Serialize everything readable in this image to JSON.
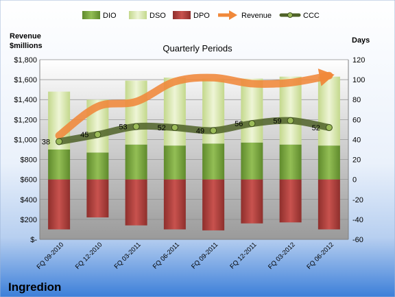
{
  "company": "Ingredion",
  "chart_data": {
    "type": "bar",
    "title": "Quarterly Periods",
    "left_axis_label": [
      "Revenue",
      "$millions"
    ],
    "right_axis_label": "Days",
    "left_ticks": [
      "$-",
      "$200",
      "$400",
      "$600",
      "$800",
      "$1,000",
      "$1,200",
      "$1,400",
      "$1,600",
      "$1,800"
    ],
    "left_ylim": [
      0,
      1800
    ],
    "right_ticks": [
      "-60",
      "-40",
      "-20",
      "0",
      "20",
      "40",
      "60",
      "80",
      "100",
      "120"
    ],
    "right_ylim": [
      -60,
      120
    ],
    "categories": [
      "FQ 09-2010",
      "FQ 12-2010",
      "FQ 03-2011",
      "FQ 06-2011",
      "FQ 09-2011",
      "FQ 12-2011",
      "FQ 03-2012",
      "FQ 06-2012"
    ],
    "legend": [
      "DIO",
      "DSO",
      "DPO",
      "Revenue",
      "CCC"
    ],
    "legend_position": "top",
    "series": [
      {
        "name": "DIO",
        "axis": "right",
        "stack": "positive",
        "color": "#7ea843",
        "values": [
          30,
          27,
          35,
          34,
          36,
          37,
          35,
          34
        ]
      },
      {
        "name": "DSO",
        "axis": "right",
        "stack": "positive",
        "color": "#dce9b5",
        "values": [
          58,
          53,
          64,
          68,
          65,
          64,
          68,
          69
        ]
      },
      {
        "name": "DPO",
        "axis": "right",
        "stack": "negative",
        "color": "#c0504d",
        "values": [
          -50,
          -38,
          -46,
          -50,
          -51,
          -44,
          -43,
          -50
        ]
      },
      {
        "name": "Revenue",
        "axis": "left",
        "type": "line",
        "color": "#f0883a",
        "values": [
          1040,
          1330,
          1380,
          1580,
          1620,
          1560,
          1570,
          1640
        ]
      },
      {
        "name": "CCC",
        "axis": "right",
        "type": "line",
        "color": "#4f6228",
        "values": [
          38,
          45,
          53,
          52,
          49,
          56,
          59,
          52
        ]
      }
    ],
    "data_labels": [
      "38",
      "45",
      "53",
      "52",
      "49",
      "56",
      "59",
      "52"
    ]
  }
}
